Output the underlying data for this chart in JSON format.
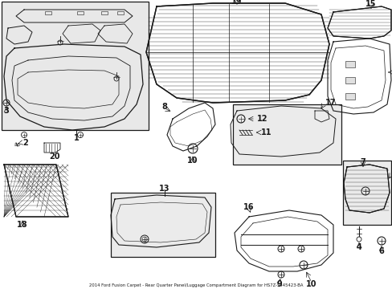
{
  "title": "2014 Ford Fusion Carpet - Rear Quarter Panel/Luggage Compartment Diagram for HS7Z-5445423-BA",
  "bg_color": "#ffffff",
  "line_color": "#1a1a1a",
  "fig_width": 4.89,
  "fig_height": 3.6,
  "dpi": 100,
  "lfs": 7
}
